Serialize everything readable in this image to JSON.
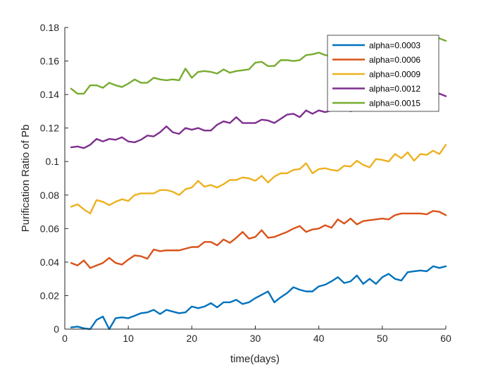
{
  "chart_data": {
    "type": "line",
    "xlabel": "time(days)",
    "ylabel": "Purification Ratio of Pb",
    "xlim": [
      0,
      60
    ],
    "ylim": [
      0,
      0.18
    ],
    "xticks": [
      0,
      10,
      20,
      30,
      40,
      50,
      60
    ],
    "xtick_labels": [
      "0",
      "10",
      "20",
      "30",
      "40",
      "50",
      "60"
    ],
    "yticks": [
      0,
      0.02,
      0.04,
      0.06,
      0.08,
      0.1,
      0.12,
      0.14,
      0.16,
      0.18
    ],
    "ytick_labels": [
      "0",
      "0.02",
      "0.04",
      "0.06",
      "0.08",
      "0.1",
      "0.12",
      "0.14",
      "0.16",
      "0.18"
    ],
    "grid": false,
    "legend_position": "top-right",
    "x": [
      1,
      2,
      3,
      4,
      5,
      6,
      7,
      8,
      9,
      10,
      11,
      12,
      13,
      14,
      15,
      16,
      17,
      18,
      19,
      20,
      21,
      22,
      23,
      24,
      25,
      26,
      27,
      28,
      29,
      30,
      31,
      32,
      33,
      34,
      35,
      36,
      37,
      38,
      39,
      40,
      41,
      42,
      43,
      44,
      45,
      46,
      47,
      48,
      49,
      50,
      51,
      52,
      53,
      54,
      55,
      56,
      57,
      58,
      59,
      60
    ],
    "series": [
      {
        "name": "alpha=0.0003",
        "color": "#0072BD",
        "values": [
          0.001,
          0.0015,
          0.0005,
          0,
          0.0055,
          0.0075,
          0,
          0.0065,
          0.007,
          0.0065,
          0.008,
          0.0095,
          0.01,
          0.0115,
          0.009,
          0.0115,
          0.0105,
          0.0095,
          0.01,
          0.0135,
          0.0125,
          0.0135,
          0.0155,
          0.013,
          0.016,
          0.016,
          0.0175,
          0.015,
          0.016,
          0.0185,
          0.0205,
          0.0225,
          0.016,
          0.019,
          0.0215,
          0.025,
          0.0235,
          0.0225,
          0.0225,
          0.0255,
          0.0265,
          0.0285,
          0.031,
          0.0275,
          0.0285,
          0.032,
          0.027,
          0.03,
          0.027,
          0.031,
          0.033,
          0.03,
          0.029,
          0.034,
          0.0345,
          0.035,
          0.0345,
          0.0375,
          0.0365,
          0.0375
        ]
      },
      {
        "name": "alpha=0.0006",
        "color": "#D95319",
        "values": [
          0.0395,
          0.038,
          0.041,
          0.0365,
          0.038,
          0.0395,
          0.0425,
          0.0395,
          0.0385,
          0.0415,
          0.044,
          0.0435,
          0.042,
          0.0475,
          0.0465,
          0.047,
          0.047,
          0.047,
          0.048,
          0.049,
          0.049,
          0.052,
          0.052,
          0.05,
          0.0535,
          0.0515,
          0.0545,
          0.058,
          0.054,
          0.055,
          0.059,
          0.0545,
          0.055,
          0.0565,
          0.058,
          0.06,
          0.0615,
          0.058,
          0.0595,
          0.06,
          0.062,
          0.0605,
          0.0655,
          0.063,
          0.066,
          0.0625,
          0.0645,
          0.065,
          0.0655,
          0.066,
          0.0655,
          0.068,
          0.069,
          0.069,
          0.069,
          0.069,
          0.0685,
          0.0705,
          0.07,
          0.068
        ]
      },
      {
        "name": "alpha=0.0009",
        "color": "#EDB120",
        "values": [
          0.073,
          0.0745,
          0.0715,
          0.069,
          0.077,
          0.076,
          0.074,
          0.076,
          0.0775,
          0.0765,
          0.08,
          0.081,
          0.081,
          0.081,
          0.083,
          0.083,
          0.082,
          0.08,
          0.0835,
          0.0845,
          0.0885,
          0.085,
          0.086,
          0.0845,
          0.0865,
          0.089,
          0.089,
          0.0905,
          0.09,
          0.0885,
          0.0915,
          0.0875,
          0.091,
          0.093,
          0.093,
          0.095,
          0.0955,
          0.099,
          0.093,
          0.0955,
          0.096,
          0.095,
          0.0945,
          0.0975,
          0.097,
          0.1005,
          0.098,
          0.0965,
          0.1015,
          0.101,
          0.1,
          0.1045,
          0.102,
          0.1055,
          0.1005,
          0.1045,
          0.104,
          0.1065,
          0.1045,
          0.11
        ]
      },
      {
        "name": "alpha=0.0012",
        "color": "#7E2F8E",
        "values": [
          0.1085,
          0.109,
          0.108,
          0.11,
          0.1135,
          0.112,
          0.1135,
          0.113,
          0.1145,
          0.112,
          0.1115,
          0.113,
          0.1155,
          0.115,
          0.1175,
          0.121,
          0.1175,
          0.1165,
          0.12,
          0.119,
          0.12,
          0.1185,
          0.1185,
          0.122,
          0.124,
          0.123,
          0.1265,
          0.123,
          0.123,
          0.123,
          0.125,
          0.1245,
          0.123,
          0.1255,
          0.128,
          0.1285,
          0.1265,
          0.1305,
          0.1285,
          0.1305,
          0.1295,
          0.1305,
          0.131,
          0.1325,
          0.13,
          0.1315,
          0.133,
          0.1335,
          0.132,
          0.1345,
          0.1335,
          0.1355,
          0.1345,
          0.1365,
          0.1355,
          0.138,
          0.137,
          0.1385,
          0.1405,
          0.139
        ]
      },
      {
        "name": "alpha=0.0015",
        "color": "#77AC30",
        "values": [
          0.1435,
          0.1405,
          0.1405,
          0.1455,
          0.1455,
          0.144,
          0.147,
          0.1455,
          0.1445,
          0.1465,
          0.149,
          0.147,
          0.147,
          0.15,
          0.149,
          0.1485,
          0.149,
          0.1485,
          0.1555,
          0.15,
          0.1535,
          0.154,
          0.1535,
          0.1525,
          0.155,
          0.153,
          0.154,
          0.1545,
          0.155,
          0.159,
          0.1595,
          0.157,
          0.157,
          0.1605,
          0.1605,
          0.16,
          0.1605,
          0.1635,
          0.164,
          0.165,
          0.1635,
          0.163,
          0.165,
          0.1645,
          0.166,
          0.1675,
          0.166,
          0.1665,
          0.1685,
          0.1695,
          0.1685,
          0.17,
          0.171,
          0.1705,
          0.1715,
          0.1745,
          0.1725,
          0.173,
          0.1735,
          0.172
        ]
      }
    ]
  }
}
